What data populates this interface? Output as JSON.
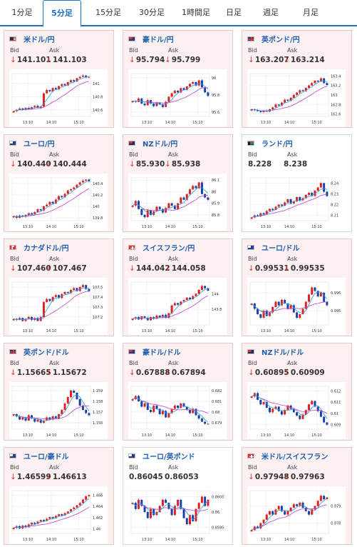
{
  "tabs": [
    {
      "label": "1分足",
      "active": false
    },
    {
      "label": "5分足",
      "active": true
    },
    {
      "label": "15分足",
      "active": false
    },
    {
      "label": "30分足",
      "active": false
    },
    {
      "label": "1時間足",
      "active": false
    },
    {
      "label": "日足",
      "active": false
    },
    {
      "label": "週足",
      "active": false
    },
    {
      "label": "月足",
      "active": false
    }
  ],
  "labels": {
    "bid": "Bid",
    "ask": "Ask",
    "arrow": "↓"
  },
  "colors": {
    "up": "#e02020",
    "down": "#1a3fa8",
    "ma_short": "#2a9fd6",
    "ma_long": "#c040d0",
    "tab_accent": "#1e6fc0"
  },
  "pairs": [
    {
      "name": "米ドル/円",
      "flag": "us",
      "bid": "141.101",
      "ask": "141.103",
      "bid_arrow": true,
      "ask_arrow": true,
      "tinted": true,
      "chart_data": {
        "type": "candlestick",
        "x_ticks": [
          "13:10",
          "14:10",
          "15:10"
        ],
        "y_ticks": [
          "141",
          "140.8",
          "140.6"
        ],
        "ylim": [
          140.5,
          141.15
        ],
        "close": [
          140.58,
          140.6,
          140.62,
          140.6,
          140.63,
          140.61,
          140.64,
          140.66,
          140.63,
          140.65,
          140.85,
          140.9,
          140.88,
          140.93,
          140.91,
          140.96,
          140.99,
          140.97,
          141.02,
          141.05,
          141.03,
          141.08,
          141.1,
          141.12,
          141.09,
          141.1
        ]
      }
    },
    {
      "name": "豪ドル/円",
      "flag": "au",
      "bid": "95.794",
      "ask": "95.799",
      "bid_arrow": true,
      "ask_arrow": true,
      "tinted": true,
      "chart_data": {
        "type": "candlestick",
        "x_ticks": [
          "13:10",
          "14:10",
          "15:10"
        ],
        "y_ticks": [
          "96",
          "95.8",
          "95.6"
        ],
        "ylim": [
          95.55,
          96.05
        ],
        "close": [
          95.73,
          95.72,
          95.76,
          95.7,
          95.68,
          95.74,
          95.7,
          95.67,
          95.71,
          95.69,
          95.66,
          95.72,
          95.78,
          95.82,
          95.85,
          95.83,
          95.88,
          95.86,
          95.9,
          95.93,
          95.95,
          95.91,
          95.97,
          95.89,
          95.83,
          95.79
        ]
      }
    },
    {
      "name": "英ポンド/円",
      "flag": "gb",
      "bid": "163.207",
      "ask": "163.214",
      "bid_arrow": true,
      "ask_arrow": true,
      "tinted": true,
      "chart_data": {
        "type": "candlestick",
        "x_ticks": [
          "13:10",
          "14:10",
          "15:10"
        ],
        "y_ticks": [
          "163.4",
          "163.2",
          "163",
          "162.8",
          "162.6"
        ],
        "ylim": [
          162.55,
          163.45
        ],
        "close": [
          162.7,
          162.68,
          162.66,
          162.64,
          162.67,
          162.65,
          162.7,
          162.74,
          162.8,
          162.78,
          162.84,
          162.9,
          162.88,
          162.94,
          163.0,
          163.05,
          163.1,
          163.08,
          163.15,
          163.2,
          163.25,
          163.3,
          163.28,
          163.35,
          163.25,
          163.21
        ]
      }
    },
    {
      "name": "ユーロ/円",
      "flag": "eu",
      "bid": "140.440",
      "ask": "140.444",
      "bid_arrow": true,
      "ask_arrow": true,
      "tinted": true,
      "chart_data": {
        "type": "candlestick",
        "x_ticks": [
          "13:10",
          "14:10",
          "15:10"
        ],
        "y_ticks": [
          "140.4",
          "140.2",
          "140",
          "139.8"
        ],
        "ylim": [
          139.75,
          140.5
        ],
        "close": [
          139.83,
          139.8,
          139.84,
          139.82,
          139.85,
          139.88,
          139.86,
          139.9,
          139.95,
          139.93,
          140.0,
          140.03,
          140.08,
          140.05,
          140.12,
          140.18,
          140.16,
          140.22,
          140.28,
          140.3,
          140.33,
          140.38,
          140.42,
          140.45,
          140.47,
          140.44
        ]
      }
    },
    {
      "name": "NZドル/円",
      "flag": "nz",
      "bid": "85.930",
      "ask": "85.938",
      "bid_arrow": true,
      "ask_arrow": true,
      "tinted": true,
      "chart_data": {
        "type": "candlestick",
        "x_ticks": [
          "13:10",
          "14:10",
          "15:10"
        ],
        "y_ticks": [
          "86.1",
          "86",
          "85.9",
          "85.8"
        ],
        "ylim": [
          85.75,
          86.12
        ],
        "close": [
          85.88,
          85.92,
          85.85,
          85.8,
          85.78,
          85.84,
          85.8,
          85.83,
          85.87,
          85.85,
          85.82,
          85.86,
          85.9,
          85.88,
          85.85,
          85.9,
          85.95,
          85.93,
          85.98,
          86.02,
          86.05,
          86.03,
          86.08,
          85.98,
          85.95,
          85.93
        ]
      }
    },
    {
      "name": "ランド/円",
      "flag": "za",
      "bid": "8.228",
      "ask": "8.238",
      "bid_arrow": false,
      "ask_arrow": false,
      "tinted": false,
      "chart_data": {
        "type": "candlestick",
        "x_ticks": [
          "13:10",
          "14:10",
          "15:10"
        ],
        "y_ticks": [
          "8.24",
          "8.23",
          "8.22",
          "8.21"
        ],
        "ylim": [
          8.205,
          8.245
        ],
        "close": [
          8.208,
          8.21,
          8.209,
          8.212,
          8.211,
          8.214,
          8.216,
          8.215,
          8.218,
          8.22,
          8.219,
          8.222,
          8.225,
          8.221,
          8.223,
          8.227,
          8.224,
          8.226,
          8.229,
          8.231,
          8.228,
          8.233,
          8.236,
          8.24,
          8.232,
          8.228
        ]
      }
    },
    {
      "name": "カナダドル/円",
      "flag": "ca",
      "bid": "107.460",
      "ask": "107.467",
      "bid_arrow": true,
      "ask_arrow": true,
      "tinted": true,
      "chart_data": {
        "type": "candlestick",
        "x_ticks": [
          "13:10",
          "14:10",
          "15:10"
        ],
        "y_ticks": [
          "107.5",
          "107.4",
          "107.3",
          "107.2"
        ],
        "ylim": [
          107.12,
          107.55
        ],
        "close": [
          107.18,
          107.17,
          107.19,
          107.16,
          107.18,
          107.2,
          107.17,
          107.19,
          107.16,
          107.2,
          107.35,
          107.38,
          107.36,
          107.4,
          107.42,
          107.39,
          107.43,
          107.45,
          107.44,
          107.47,
          107.49,
          107.46,
          107.5,
          107.52,
          107.48,
          107.46
        ]
      }
    },
    {
      "name": "スイスフラン/円",
      "flag": "ch",
      "bid": "144.042",
      "ask": "144.058",
      "bid_arrow": true,
      "ask_arrow": true,
      "tinted": true,
      "chart_data": {
        "type": "candlestick",
        "x_ticks": [
          "13:10",
          "14:10",
          "15:10"
        ],
        "y_ticks": [
          "144",
          "143.8"
        ],
        "ylim": [
          143.6,
          144.15
        ],
        "close": [
          143.68,
          143.7,
          143.67,
          143.71,
          143.69,
          143.66,
          143.7,
          143.68,
          143.72,
          143.7,
          143.73,
          143.69,
          143.75,
          143.85,
          143.88,
          143.86,
          143.9,
          143.92,
          143.95,
          143.93,
          143.97,
          144.0,
          144.05,
          144.1,
          144.07,
          144.04
        ]
      }
    },
    {
      "name": "ユーロ/ドル",
      "flag": "eu",
      "bid": "0.99531",
      "ask": "0.99535",
      "bid_arrow": true,
      "ask_arrow": true,
      "tinted": true,
      "chart_data": {
        "type": "candlestick",
        "x_ticks": [
          "13:10",
          "14:10",
          "15:10"
        ],
        "y_ticks": [
          "0.996",
          "0.995"
        ],
        "ylim": [
          0.9942,
          0.9966
        ],
        "close": [
          0.9954,
          0.9951,
          0.9948,
          0.9946,
          0.995,
          0.9947,
          0.9949,
          0.9952,
          0.9955,
          0.9953,
          0.9956,
          0.9954,
          0.9951,
          0.9953,
          0.9949,
          0.9946,
          0.9948,
          0.9951,
          0.9955,
          0.9959,
          0.9963,
          0.9961,
          0.9958,
          0.996,
          0.9955,
          0.9953
        ]
      }
    },
    {
      "name": "英ポンド/ドル",
      "flag": "gb",
      "bid": "1.15665",
      "ask": "1.15672",
      "bid_arrow": true,
      "ask_arrow": true,
      "tinted": true,
      "chart_data": {
        "type": "candlestick",
        "x_ticks": [
          "13:10",
          "14:10",
          "15:10"
        ],
        "y_ticks": [
          "1.159",
          "1.158",
          "1.157",
          "1.156"
        ],
        "ylim": [
          1.1554,
          1.1594
        ],
        "close": [
          1.1568,
          1.1566,
          1.1563,
          1.1565,
          1.1562,
          1.1567,
          1.1564,
          1.1561,
          1.1563,
          1.156,
          1.1562,
          1.1565,
          1.1563,
          1.1566,
          1.1564,
          1.1568,
          1.1572,
          1.1578,
          1.1584,
          1.159,
          1.1588,
          1.1582,
          1.1576,
          1.1572,
          1.1569,
          1.1567
        ]
      }
    },
    {
      "name": "豪ドル/ドル",
      "flag": "au",
      "bid": "0.67888",
      "ask": "0.67894",
      "bid_arrow": true,
      "ask_arrow": true,
      "tinted": true,
      "chart_data": {
        "type": "candlestick",
        "x_ticks": [
          "13:10",
          "14:10",
          "15:10"
        ],
        "y_ticks": [
          "0.682",
          "0.681",
          "0.68",
          "0.679"
        ],
        "ylim": [
          0.6784,
          0.6824
        ],
        "close": [
          0.6812,
          0.6815,
          0.681,
          0.6805,
          0.6808,
          0.6802,
          0.68,
          0.6806,
          0.6803,
          0.6798,
          0.6801,
          0.6795,
          0.6799,
          0.6803,
          0.6806,
          0.6804,
          0.6808,
          0.6805,
          0.6802,
          0.6799,
          0.6803,
          0.6797,
          0.6794,
          0.6791,
          0.6789,
          0.6789
        ]
      }
    },
    {
      "name": "NZドル/ドル",
      "flag": "nz",
      "bid": "0.60895",
      "ask": "0.60909",
      "bid_arrow": true,
      "ask_arrow": true,
      "tinted": true,
      "chart_data": {
        "type": "candlestick",
        "x_ticks": [
          "13:10",
          "14:10",
          "15:10"
        ],
        "y_ticks": [
          "0.612",
          "0.611",
          "0.61",
          "0.609"
        ],
        "ylim": [
          0.6086,
          0.6124
        ],
        "close": [
          0.6115,
          0.6118,
          0.6112,
          0.6108,
          0.611,
          0.6105,
          0.6101,
          0.6104,
          0.6106,
          0.6102,
          0.6099,
          0.6103,
          0.6107,
          0.6104,
          0.6101,
          0.6098,
          0.6095,
          0.6099,
          0.6103,
          0.6108,
          0.6111,
          0.6106,
          0.6102,
          0.6097,
          0.6092,
          0.609
        ]
      }
    },
    {
      "name": "ユーロ/豪ドル",
      "flag": "eu",
      "bid": "1.46599",
      "ask": "1.46613",
      "bid_arrow": true,
      "ask_arrow": true,
      "tinted": true,
      "chart_data": {
        "type": "candlestick",
        "x_ticks": [
          "13:10",
          "14:10",
          "15:10"
        ],
        "y_ticks": [
          "1.466",
          "1.464",
          "1.462",
          "1.46"
        ],
        "ylim": [
          1.4592,
          1.4668
        ],
        "close": [
          1.4602,
          1.4605,
          1.4601,
          1.4606,
          1.4603,
          1.4608,
          1.4611,
          1.4609,
          1.4613,
          1.4616,
          1.4614,
          1.4618,
          1.4621,
          1.4619,
          1.4623,
          1.4626,
          1.4624,
          1.4628,
          1.4631,
          1.4635,
          1.4638,
          1.4642,
          1.4646,
          1.4652,
          1.4658,
          1.466
        ]
      }
    },
    {
      "name": "ユーロ/英ポンド",
      "flag": "eu",
      "bid": "0.86045",
      "ask": "0.86053",
      "bid_arrow": false,
      "ask_arrow": false,
      "tinted": false,
      "chart_data": {
        "type": "candlestick",
        "x_ticks": [
          "13:10",
          "14:10",
          "15:10"
        ],
        "y_ticks": [
          "0.8605",
          "0.86",
          "0.8595"
        ],
        "ylim": [
          0.8593,
          0.8607
        ],
        "close": [
          0.8603,
          0.8601,
          0.8604,
          0.8602,
          0.86,
          0.8598,
          0.8601,
          0.8599,
          0.86,
          0.8602,
          0.8604,
          0.8603,
          0.8601,
          0.8599,
          0.8602,
          0.8604,
          0.8601,
          0.8598,
          0.8596,
          0.8599,
          0.8597,
          0.8601,
          0.8603,
          0.8605,
          0.8602,
          0.8604
        ]
      }
    },
    {
      "name": "米ドル/スイスフラン",
      "flag": "ch",
      "bid": "0.97948",
      "ask": "0.97963",
      "bid_arrow": true,
      "ask_arrow": true,
      "tinted": true,
      "chart_data": {
        "type": "candlestick",
        "x_ticks": [
          "13:10",
          "14:10",
          "15:10"
        ],
        "y_ticks": [
          "0.979",
          "0.978"
        ],
        "ylim": [
          0.9774,
          0.9799
        ],
        "close": [
          0.9776,
          0.9778,
          0.9777,
          0.978,
          0.9782,
          0.9785,
          0.9787,
          0.9785,
          0.9788,
          0.979,
          0.9787,
          0.9785,
          0.9787,
          0.9789,
          0.9791,
          0.979,
          0.9792,
          0.9789,
          0.9787,
          0.9785,
          0.9788,
          0.979,
          0.9793,
          0.9796,
          0.9794,
          0.9795
        ]
      }
    }
  ]
}
